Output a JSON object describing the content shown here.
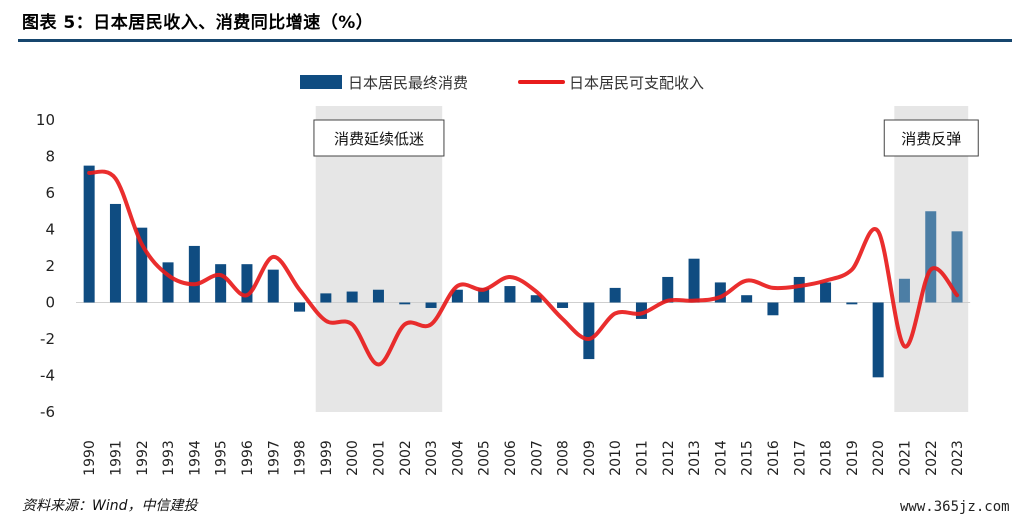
{
  "header": {
    "title": "图表 5：日本居民收入、消费同比增速（%）"
  },
  "footer": {
    "source": "资料来源：Wind，中信建投",
    "watermark": "www.365jz.com"
  },
  "colors": {
    "bar_dark": "#0f4c81",
    "bar_light": "#4c7ea5",
    "line": "#e81c1c",
    "shade": "#e6e6e6",
    "rule": "#16466e"
  },
  "chart_data": {
    "type": "bar",
    "categories": [
      "1990",
      "1991",
      "1992",
      "1993",
      "1994",
      "1995",
      "1996",
      "1997",
      "1998",
      "1999",
      "2000",
      "2001",
      "2002",
      "2003",
      "2004",
      "2005",
      "2006",
      "2007",
      "2008",
      "2009",
      "2010",
      "2011",
      "2012",
      "2013",
      "2014",
      "2015",
      "2016",
      "2017",
      "2018",
      "2019",
      "2020",
      "2021",
      "2022",
      "2023"
    ],
    "series": [
      {
        "name": "日本居民最终消费",
        "type": "bar",
        "values": [
          7.5,
          5.4,
          4.1,
          2.2,
          3.1,
          2.1,
          2.1,
          1.8,
          -0.5,
          0.5,
          0.6,
          0.7,
          -0.1,
          -0.3,
          0.7,
          0.8,
          0.9,
          0.4,
          -0.3,
          -3.1,
          0.8,
          -0.9,
          1.4,
          2.4,
          1.1,
          0.4,
          -0.7,
          1.4,
          1.1,
          -0.1,
          -4.1,
          1.3,
          5.0,
          3.9
        ]
      },
      {
        "name": "日本居民可支配收入",
        "type": "line",
        "values": [
          7.1,
          6.8,
          3.2,
          1.5,
          1.0,
          1.5,
          0.4,
          2.5,
          0.7,
          -1.0,
          -1.2,
          -3.4,
          -1.2,
          -1.2,
          0.9,
          0.7,
          1.4,
          0.6,
          -0.9,
          -2.0,
          -0.6,
          -0.6,
          0.1,
          0.1,
          0.3,
          1.2,
          0.8,
          0.9,
          1.2,
          1.8,
          3.9,
          -2.4,
          1.8,
          0.4
        ]
      }
    ],
    "ylim": [
      -6,
      10
    ],
    "yticks": [
      -6,
      -4,
      -2,
      0,
      2,
      4,
      6,
      8,
      10
    ],
    "grid": false,
    "legend_position": "top-center",
    "shaded_periods": [
      {
        "label": "消费延续低迷",
        "from": "1999",
        "to": "2003"
      },
      {
        "label": "消费反弹",
        "from": "2021",
        "to": "2023"
      }
    ]
  }
}
